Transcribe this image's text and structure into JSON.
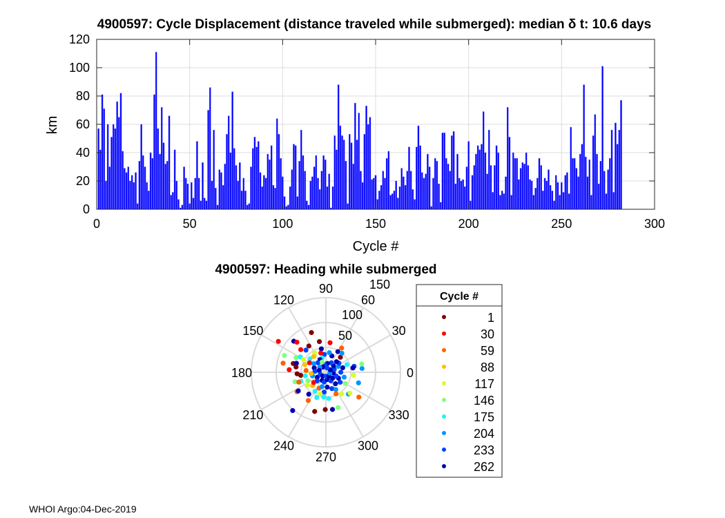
{
  "footer": "WHOI Argo:04-Dec-2019",
  "chart_data": [
    {
      "type": "bar",
      "title": "4900597: Cycle Displacement (distance traveled while submerged):   median δ t: 10.6 days",
      "xlabel": "Cycle #",
      "ylabel": "km",
      "xlim": [
        0,
        300
      ],
      "ylim": [
        0,
        120
      ],
      "xticks": [
        0,
        50,
        100,
        150,
        200,
        250,
        300
      ],
      "yticks": [
        0,
        20,
        40,
        60,
        80,
        100,
        120
      ],
      "grid": true,
      "bar_color": "#0000ff",
      "x_start": 1,
      "values": [
        57,
        42,
        81,
        71,
        20,
        60,
        30,
        51,
        60,
        57,
        76,
        65,
        82,
        41,
        29,
        26,
        30,
        20,
        24,
        19,
        26,
        4,
        34,
        60,
        38,
        30,
        19,
        13,
        40,
        36,
        81,
        111,
        57,
        39,
        72,
        47,
        32,
        34,
        66,
        10,
        12,
        42,
        20,
        7,
        1,
        3,
        30,
        22,
        18,
        4,
        19,
        8,
        22,
        48,
        22,
        6,
        33,
        8,
        6,
        70,
        86,
        20,
        56,
        15,
        3,
        28,
        26,
        17,
        32,
        53,
        66,
        40,
        83,
        43,
        31,
        20,
        33,
        13,
        22,
        13,
        3,
        4,
        30,
        43,
        51,
        44,
        48,
        26,
        16,
        24,
        22,
        39,
        35,
        45,
        17,
        15,
        64,
        53,
        36,
        23,
        9,
        2,
        3,
        16,
        28,
        46,
        45,
        9,
        34,
        56,
        38,
        27,
        6,
        3,
        20,
        23,
        30,
        38,
        22,
        14,
        27,
        38,
        35,
        16,
        25,
        1,
        16,
        52,
        42,
        88,
        59,
        52,
        49,
        34,
        4,
        53,
        47,
        32,
        75,
        49,
        68,
        27,
        19,
        53,
        73,
        60,
        65,
        21,
        22,
        24,
        7,
        13,
        17,
        27,
        22,
        36,
        41,
        10,
        11,
        13,
        20,
        8,
        16,
        29,
        23,
        17,
        27,
        44,
        27,
        14,
        7,
        44,
        59,
        45,
        26,
        22,
        25,
        39,
        30,
        2,
        22,
        36,
        34,
        18,
        5,
        54,
        54,
        36,
        32,
        27,
        52,
        55,
        18,
        39,
        22,
        20,
        21,
        16,
        30,
        48,
        6,
        24,
        31,
        39,
        45,
        42,
        46,
        69,
        40,
        25,
        56,
        31,
        12,
        31,
        45,
        40,
        10,
        13,
        11,
        23,
        72,
        51,
        10,
        40,
        36,
        36,
        21,
        29,
        33,
        32,
        40,
        31,
        21,
        20,
        10,
        15,
        22,
        36,
        31,
        13,
        22,
        20,
        28,
        17,
        13,
        6,
        24,
        19,
        10,
        19,
        12,
        24,
        26,
        11,
        58,
        36,
        36,
        29,
        23,
        39,
        46,
        88,
        37,
        23,
        35,
        10,
        52,
        67,
        39,
        18,
        34,
        101,
        27,
        11,
        28,
        36,
        56,
        12,
        61,
        46,
        56,
        77
      ]
    },
    {
      "type": "scatter",
      "subtype": "polar",
      "title": "4900597: Heading while submerged",
      "theta_ticks": [
        0,
        30,
        60,
        90,
        120,
        150,
        180,
        210,
        240,
        270,
        300,
        330
      ],
      "r_ticks": [
        50,
        100,
        150
      ],
      "rlim": [
        0,
        150
      ],
      "legend": {
        "title": "Cycle #",
        "placement": "right",
        "entries": [
          {
            "label": "1",
            "color": "#800000"
          },
          {
            "label": "30",
            "color": "#ff0000"
          },
          {
            "label": "59",
            "color": "#ff6000"
          },
          {
            "label": "88",
            "color": "#ffbf00"
          },
          {
            "label": "117",
            "color": "#d4ff2b"
          },
          {
            "label": "146",
            "color": "#80ff80"
          },
          {
            "label": "175",
            "color": "#20f0ff"
          },
          {
            "label": "204",
            "color": "#0095ff"
          },
          {
            "label": "233",
            "color": "#0040ff"
          },
          {
            "label": "262",
            "color": "#0000b0"
          }
        ]
      },
      "points_theta_r_group": [
        [
          110,
          85,
          0
        ],
        [
          147,
          114,
          1
        ],
        [
          136,
          90,
          9
        ],
        [
          134,
          84,
          1
        ],
        [
          123,
          63,
          0
        ],
        [
          138,
          68,
          1
        ],
        [
          132,
          60,
          8
        ],
        [
          158,
          90,
          5
        ],
        [
          154,
          67,
          5
        ],
        [
          149,
          60,
          6
        ],
        [
          168,
          88,
          2
        ],
        [
          165,
          68,
          0
        ],
        [
          163,
          62,
          9
        ],
        [
          176,
          74,
          1
        ],
        [
          170,
          61,
          0
        ],
        [
          183,
          58,
          0
        ],
        [
          187,
          51,
          0
        ],
        [
          197,
          65,
          5
        ],
        [
          200,
          54,
          6
        ],
        [
          214,
          70,
          2
        ],
        [
          214,
          67,
          9
        ],
        [
          229,
          102,
          9
        ],
        [
          232,
          56,
          9
        ],
        [
          238,
          67,
          2
        ],
        [
          254,
          82,
          0
        ],
        [
          269,
          75,
          0
        ],
        [
          280,
          76,
          9
        ],
        [
          289,
          75,
          5
        ],
        [
          276,
          53,
          6
        ],
        [
          250,
          54,
          6
        ],
        [
          247,
          35,
          2
        ],
        [
          306,
          54,
          4
        ],
        [
          316,
          63,
          7
        ],
        [
          319,
          64,
          4
        ],
        [
          323,
          83,
          2
        ],
        [
          342,
          69,
          7
        ],
        [
          354,
          56,
          4
        ],
        [
          6,
          73,
          7
        ],
        [
          13,
          74,
          5
        ],
        [
          12,
          58,
          8
        ],
        [
          9,
          55,
          9
        ],
        [
          57,
          58,
          2
        ],
        [
          60,
          48,
          9
        ],
        [
          46,
          42,
          0
        ],
        [
          82,
          60,
          1
        ],
        [
          101,
          48,
          9
        ],
        [
          102,
          63,
          0
        ],
        [
          120,
          45,
          4
        ],
        [
          128,
          40,
          3
        ],
        [
          140,
          42,
          6
        ],
        [
          150,
          38,
          1
        ],
        [
          160,
          45,
          3
        ],
        [
          175,
          40,
          2
        ],
        [
          190,
          42,
          6
        ],
        [
          205,
          40,
          5
        ],
        [
          215,
          45,
          4
        ],
        [
          225,
          38,
          3
        ],
        [
          240,
          44,
          6
        ],
        [
          255,
          30,
          7
        ],
        [
          265,
          40,
          8
        ],
        [
          275,
          30,
          9
        ],
        [
          290,
          35,
          8
        ],
        [
          300,
          40,
          7
        ],
        [
          310,
          30,
          9
        ],
        [
          325,
          35,
          8
        ],
        [
          335,
          28,
          9
        ],
        [
          345,
          38,
          7
        ],
        [
          0,
          30,
          8
        ],
        [
          15,
          35,
          9
        ],
        [
          25,
          28,
          7
        ],
        [
          35,
          32,
          8
        ],
        [
          45,
          30,
          9
        ],
        [
          70,
          35,
          9
        ],
        [
          80,
          40,
          7
        ],
        [
          95,
          36,
          8
        ],
        [
          105,
          30,
          6
        ],
        [
          115,
          28,
          9
        ],
        [
          130,
          25,
          8
        ],
        [
          145,
          30,
          7
        ],
        [
          160,
          25,
          9
        ],
        [
          175,
          22,
          8
        ],
        [
          195,
          28,
          7
        ],
        [
          210,
          20,
          9
        ],
        [
          225,
          25,
          8
        ],
        [
          245,
          18,
          9
        ],
        [
          260,
          20,
          8
        ],
        [
          280,
          15,
          9
        ],
        [
          300,
          20,
          8
        ],
        [
          320,
          18,
          9
        ],
        [
          340,
          22,
          8
        ],
        [
          355,
          15,
          9
        ],
        [
          20,
          18,
          8
        ],
        [
          40,
          20,
          9
        ],
        [
          60,
          22,
          8
        ],
        [
          80,
          18,
          9
        ],
        [
          100,
          15,
          8
        ],
        [
          120,
          12,
          9
        ],
        [
          140,
          16,
          7
        ],
        [
          165,
          14,
          9
        ],
        [
          200,
          12,
          8
        ],
        [
          230,
          10,
          9
        ],
        [
          270,
          8,
          8
        ],
        [
          310,
          10,
          9
        ],
        [
          350,
          8,
          7
        ],
        [
          30,
          10,
          9
        ],
        [
          75,
          9,
          8
        ],
        [
          110,
          22,
          5
        ],
        [
          185,
          30,
          3
        ],
        [
          220,
          32,
          1
        ],
        [
          265,
          50,
          6
        ],
        [
          295,
          48,
          2
        ],
        [
          330,
          45,
          5
        ],
        [
          20,
          45,
          6
        ],
        [
          50,
          50,
          7
        ],
        [
          150,
          52,
          4
        ],
        [
          200,
          58,
          2
        ],
        [
          105,
          40,
          1
        ],
        [
          255,
          45,
          4
        ]
      ]
    }
  ]
}
